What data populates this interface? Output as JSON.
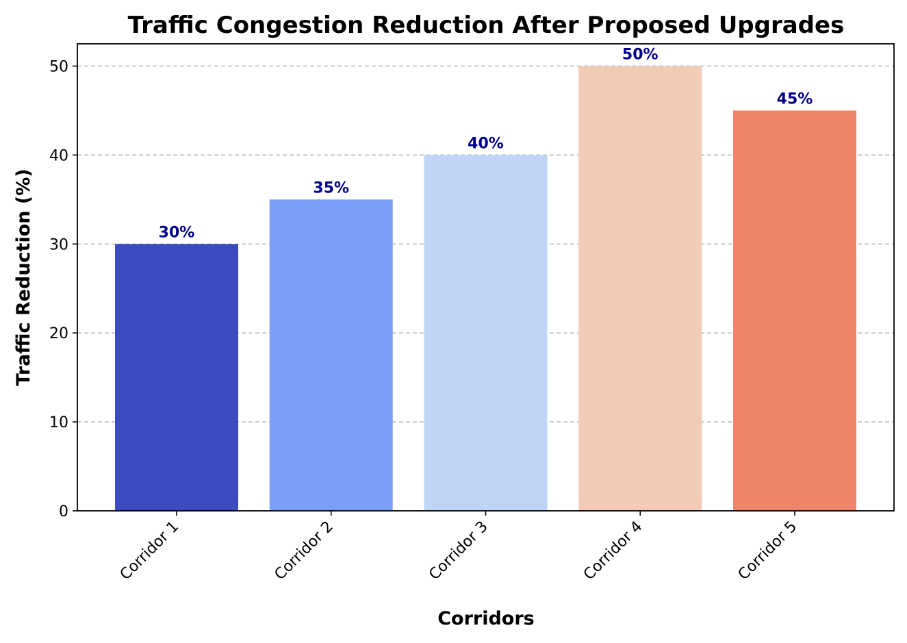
{
  "chart_data": {
    "type": "bar",
    "title": "Traffic Congestion Reduction After Proposed Upgrades",
    "xlabel": "Corridors",
    "ylabel": "Traffic Reduction (%)",
    "categories": [
      "Corridor 1",
      "Corridor 2",
      "Corridor 3",
      "Corridor 4",
      "Corridor 5"
    ],
    "values": [
      30,
      35,
      40,
      50,
      45
    ],
    "data_labels": [
      "30%",
      "35%",
      "40%",
      "50%",
      "45%"
    ],
    "bar_colors": [
      "#3b4cc0",
      "#7b9ff9",
      "#c0d4f5",
      "#f2cbb7",
      "#ee8468"
    ],
    "data_label_color": "#00008b",
    "ylim": [
      0,
      52.5
    ],
    "yticks": [
      0,
      10,
      20,
      30,
      40,
      50
    ],
    "ytick_labels": [
      "0",
      "10",
      "20",
      "30",
      "40",
      "50"
    ],
    "grid": "y-dashed",
    "legend": "none"
  }
}
